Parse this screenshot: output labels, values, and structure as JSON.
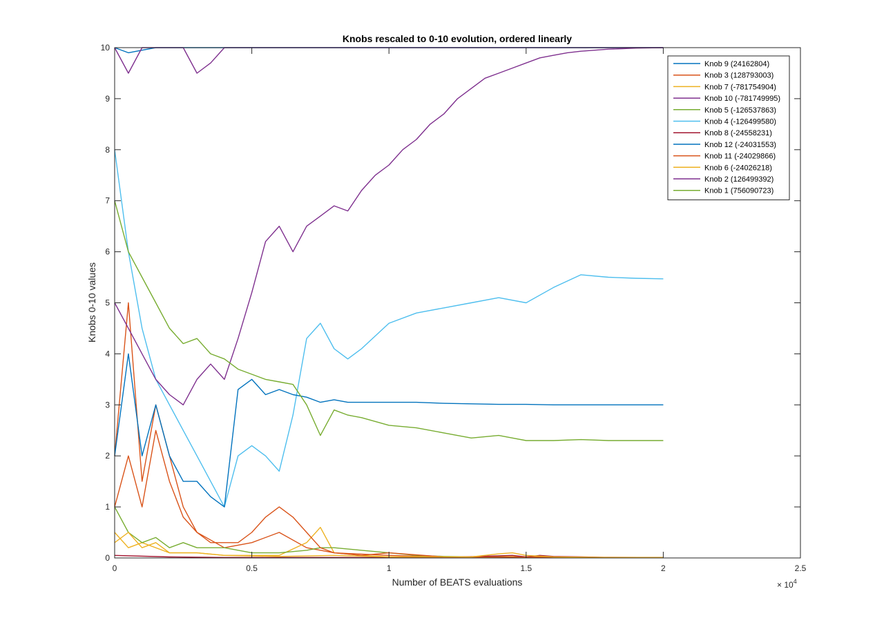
{
  "chart_data": {
    "type": "line",
    "title": "Knobs rescaled to 0-10 evolution, ordered linearly",
    "xlabel": "Number of BEATS evaluations",
    "ylabel": "Knobs 0-10 values",
    "x_exponent_label": "× 10",
    "x_exponent_power": "4",
    "xlim": [
      0,
      25000
    ],
    "ylim": [
      0,
      10
    ],
    "x_ticks": [
      0,
      5000,
      10000,
      15000,
      20000,
      25000
    ],
    "x_tick_labels": [
      "0",
      "0.5",
      "1",
      "1.5",
      "2",
      "2.5"
    ],
    "y_ticks": [
      0,
      1,
      2,
      3,
      4,
      5,
      6,
      7,
      8,
      9,
      10
    ],
    "y_tick_labels": [
      "0",
      "1",
      "2",
      "3",
      "4",
      "5",
      "6",
      "7",
      "8",
      "9",
      "10"
    ],
    "grid": false,
    "legend_position": "top-right",
    "series": [
      {
        "name": "Knob 9 (24162804)",
        "color": "#0072BD",
        "x": [
          0,
          500,
          1000,
          1500,
          2000,
          2500,
          3000,
          3500,
          4000,
          4500,
          5000,
          5500,
          6000,
          6500,
          7000,
          8000,
          9000,
          10000,
          12000,
          14000,
          16000,
          18000,
          20000
        ],
        "y": [
          10,
          9.9,
          9.95,
          10,
          10,
          10,
          10,
          10,
          10,
          10,
          10,
          10,
          10,
          10,
          10,
          10,
          10,
          10,
          10,
          10,
          10,
          10,
          10
        ]
      },
      {
        "name": "Knob 3 (128793003)",
        "color": "#D95319",
        "x": [
          0,
          500,
          1000,
          1500,
          2000,
          2500,
          3000,
          4000,
          5000,
          6000,
          7000,
          8000,
          10000,
          12000,
          14000,
          16000,
          18000,
          20000
        ],
        "y": [
          2,
          5,
          1.5,
          3,
          2,
          1,
          0.5,
          0.2,
          0.3,
          0.5,
          0.2,
          0.1,
          0.05,
          0.02,
          0.02,
          0.01,
          0.01,
          0.01
        ]
      },
      {
        "name": "Knob 7 (-781754904)",
        "color": "#EDB120",
        "x": [
          0,
          500,
          1000,
          2000,
          3000,
          4000,
          5000,
          6000,
          7000,
          7500,
          8000,
          9000,
          10000,
          12000,
          14000,
          16000,
          18000,
          20000
        ],
        "y": [
          0.5,
          0.2,
          0.3,
          0.1,
          0.1,
          0.05,
          0.05,
          0.05,
          0.3,
          0.6,
          0.1,
          0.05,
          0.02,
          0.02,
          0.03,
          0.02,
          0.01,
          0.01
        ]
      },
      {
        "name": "Knob 10 (-781749995)",
        "color": "#7E2F8E",
        "x": [
          0,
          500,
          1000,
          1500,
          2000,
          2500,
          3000,
          3500,
          4000,
          6000,
          8000,
          10000,
          14000,
          18000,
          20000
        ],
        "y": [
          10,
          9.5,
          10,
          10,
          10,
          10,
          9.5,
          9.7,
          10,
          10,
          10,
          10,
          10,
          10,
          10
        ]
      },
      {
        "name": "Knob 5 (-126537863)",
        "color": "#77AC30",
        "x": [
          0,
          500,
          1000,
          1500,
          2000,
          2500,
          3000,
          4000,
          5000,
          6000,
          7000,
          7500,
          8000,
          9000,
          10000,
          11000,
          12000,
          13000,
          14000,
          15000,
          16000,
          18000,
          20000
        ],
        "y": [
          1,
          0.5,
          0.3,
          0.4,
          0.2,
          0.3,
          0.2,
          0.2,
          0.1,
          0.1,
          0.15,
          0.2,
          0.2,
          0.15,
          0.1,
          0.05,
          0.03,
          0.02,
          0.02,
          0.01,
          0.01,
          0.01,
          0.01
        ]
      },
      {
        "name": "Knob 4 (-126499580)",
        "color": "#4DBEEE",
        "x": [
          0,
          500,
          1000,
          1500,
          2000,
          2500,
          3000,
          3500,
          4000,
          4500,
          5000,
          5500,
          6000,
          6500,
          7000,
          7500,
          8000,
          8500,
          9000,
          10000,
          11000,
          12000,
          13000,
          14000,
          15000,
          16000,
          17000,
          18000,
          19000,
          20000
        ],
        "y": [
          8,
          6,
          4.5,
          3.5,
          3,
          2.5,
          2,
          1.5,
          1,
          2,
          2.2,
          2,
          1.7,
          2.8,
          4.3,
          4.6,
          4.1,
          3.9,
          4.1,
          4.6,
          4.8,
          4.9,
          5.0,
          5.1,
          5.0,
          5.3,
          5.55,
          5.5,
          5.48,
          5.47
        ]
      },
      {
        "name": "Knob 8 (-24558231)",
        "color": "#A2142F",
        "x": [
          0,
          2000,
          4000,
          8000,
          12000,
          14500,
          15000,
          15500,
          16000,
          17000,
          18000,
          20000
        ],
        "y": [
          0.05,
          0.02,
          0.01,
          0.01,
          0.01,
          0.05,
          0.02,
          0.05,
          0.03,
          0.02,
          0.01,
          0.01
        ]
      },
      {
        "name": "Knob 12 (-24031553)",
        "color": "#0072BD",
        "x": [
          0,
          500,
          1000,
          1500,
          2000,
          2500,
          3000,
          3500,
          4000,
          4500,
          5000,
          5500,
          6000,
          6500,
          7000,
          7500,
          8000,
          8500,
          9000,
          10000,
          11000,
          12000,
          13000,
          14000,
          15000,
          16000,
          17000,
          18000,
          19000,
          20000
        ],
        "y": [
          2,
          4,
          2,
          3,
          2,
          1.5,
          1.5,
          1.2,
          1,
          3.3,
          3.5,
          3.2,
          3.3,
          3.2,
          3.15,
          3.05,
          3.1,
          3.05,
          3.05,
          3.05,
          3.05,
          3.03,
          3.02,
          3.01,
          3.01,
          3.0,
          3.0,
          3.0,
          3.0,
          3.0
        ]
      },
      {
        "name": "Knob 11 (-24029866)",
        "color": "#D95319",
        "x": [
          0,
          500,
          1000,
          1500,
          2000,
          2500,
          3000,
          3500,
          4000,
          4500,
          5000,
          5500,
          6000,
          6500,
          7000,
          7500,
          8000,
          9000,
          10000,
          12000,
          20000
        ],
        "y": [
          1,
          2,
          1,
          2.5,
          1.5,
          0.8,
          0.5,
          0.3,
          0.3,
          0.3,
          0.5,
          0.8,
          1.0,
          0.8,
          0.5,
          0.2,
          0.1,
          0.05,
          0.1,
          0.02,
          0.01
        ]
      },
      {
        "name": "Knob 6 (-24026218)",
        "color": "#EDB120",
        "x": [
          0,
          500,
          1000,
          1500,
          2000,
          3000,
          4000,
          6000,
          8000,
          10000,
          13000,
          14000,
          14500,
          15000,
          16000,
          18000,
          20000
        ],
        "y": [
          0.3,
          0.5,
          0.2,
          0.3,
          0.1,
          0.1,
          0.05,
          0.03,
          0.05,
          0.02,
          0.02,
          0.08,
          0.1,
          0.05,
          0.02,
          0.01,
          0.01
        ]
      },
      {
        "name": "Knob 2 (126499392)",
        "color": "#7E2F8E",
        "x": [
          0,
          500,
          1000,
          1500,
          2000,
          2500,
          3000,
          3500,
          4000,
          4500,
          5000,
          5500,
          6000,
          6500,
          7000,
          7500,
          8000,
          8500,
          9000,
          9500,
          10000,
          10500,
          11000,
          11500,
          12000,
          12500,
          13000,
          13500,
          14000,
          14500,
          15000,
          15500,
          16000,
          16500,
          17000,
          17500,
          18000,
          18500,
          19000,
          20000
        ],
        "y": [
          5,
          4.5,
          4,
          3.5,
          3.2,
          3,
          3.5,
          3.8,
          3.5,
          4.3,
          5.2,
          6.2,
          6.5,
          6.0,
          6.5,
          6.7,
          6.9,
          6.8,
          7.2,
          7.5,
          7.7,
          8.0,
          8.2,
          8.5,
          8.7,
          9.0,
          9.2,
          9.4,
          9.5,
          9.6,
          9.7,
          9.8,
          9.85,
          9.9,
          9.93,
          9.95,
          9.97,
          9.98,
          9.99,
          10
        ]
      },
      {
        "name": "Knob 1 (756090723)",
        "color": "#77AC30",
        "x": [
          0,
          500,
          1000,
          1500,
          2000,
          2500,
          3000,
          3500,
          4000,
          4500,
          5000,
          5500,
          6000,
          6500,
          7000,
          7500,
          8000,
          8500,
          9000,
          10000,
          11000,
          12000,
          13000,
          14000,
          15000,
          16000,
          17000,
          18000,
          19000,
          20000
        ],
        "y": [
          7,
          6,
          5.5,
          5,
          4.5,
          4.2,
          4.3,
          4.0,
          3.9,
          3.7,
          3.6,
          3.5,
          3.45,
          3.4,
          3.0,
          2.4,
          2.9,
          2.8,
          2.75,
          2.6,
          2.55,
          2.45,
          2.35,
          2.4,
          2.3,
          2.3,
          2.32,
          2.3,
          2.3,
          2.3
        ]
      }
    ]
  }
}
